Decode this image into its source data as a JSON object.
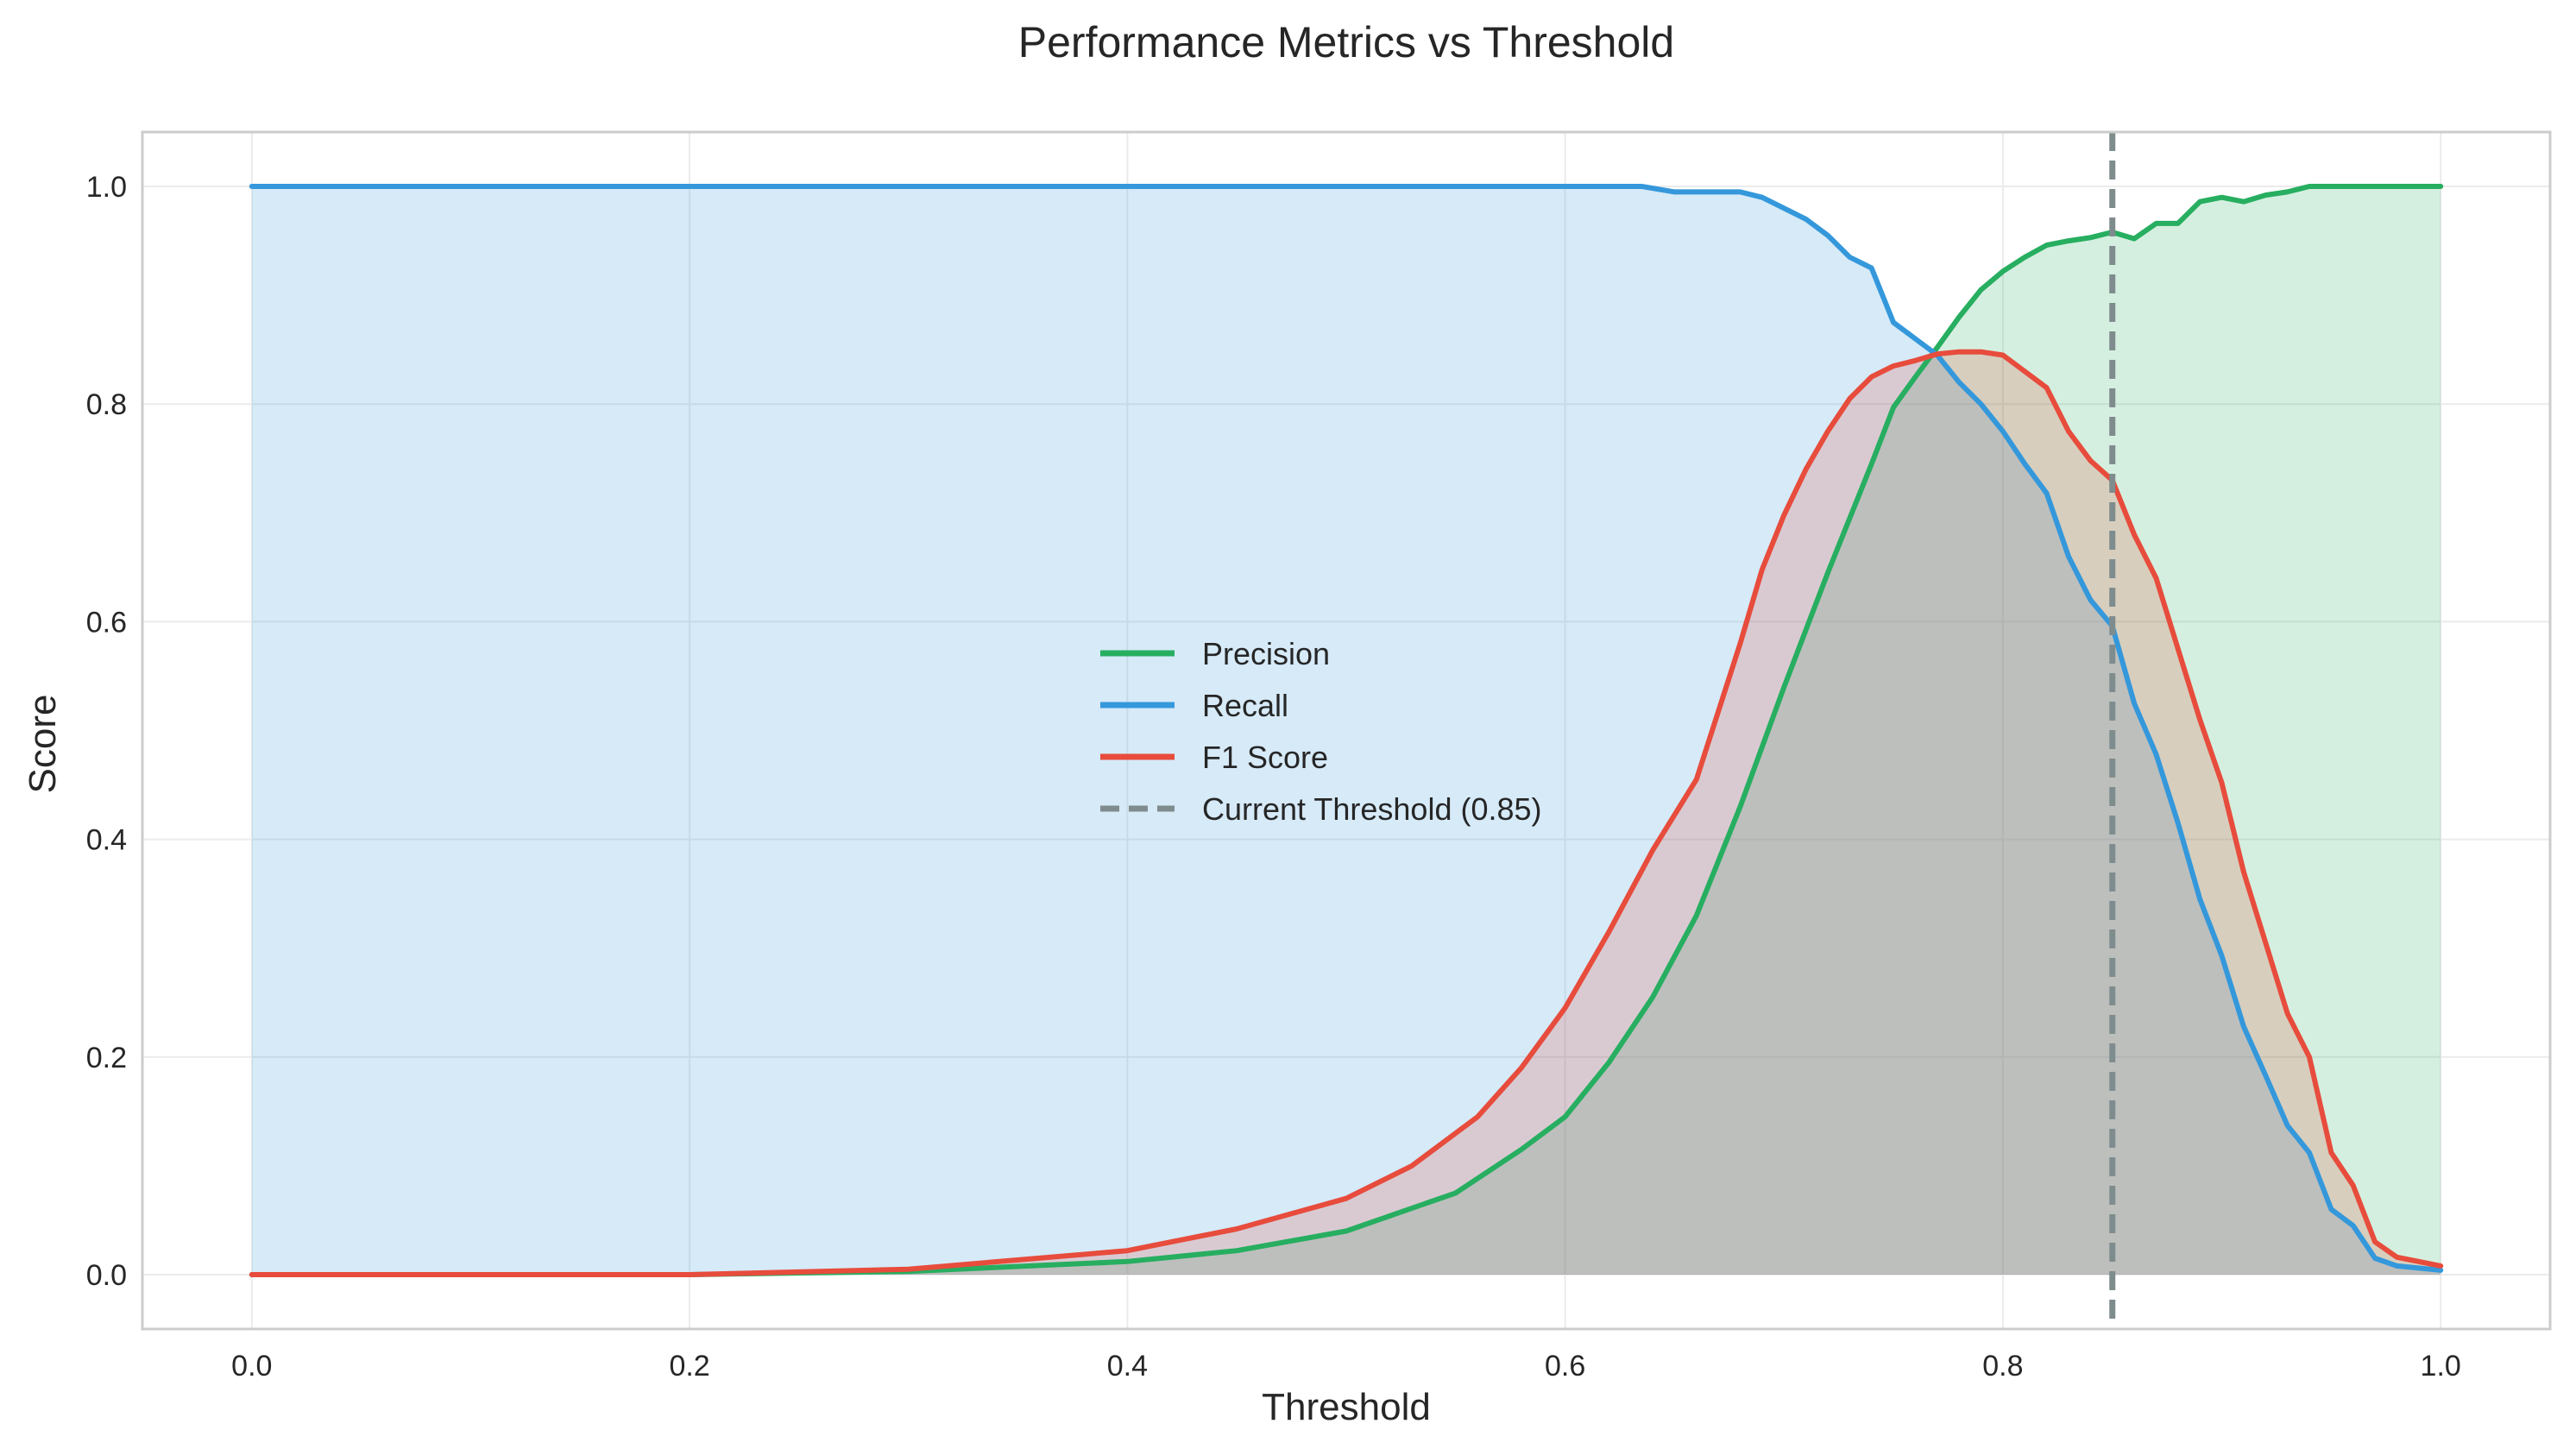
{
  "chart_data": {
    "type": "line",
    "title": "Performance Metrics vs Threshold",
    "xlabel": "Threshold",
    "ylabel": "Score",
    "xlim": [
      -0.05,
      1.05
    ],
    "ylim": [
      -0.05,
      1.05
    ],
    "xticks": [
      0.0,
      0.2,
      0.4,
      0.6,
      0.8,
      1.0
    ],
    "yticks": [
      0.0,
      0.2,
      0.4,
      0.6,
      0.8,
      1.0
    ],
    "xtick_labels": [
      "0.0",
      "0.2",
      "0.4",
      "0.6",
      "0.8",
      "1.0"
    ],
    "ytick_labels": [
      "0.0",
      "0.2",
      "0.4",
      "0.6",
      "0.8",
      "1.0"
    ],
    "grid": true,
    "legend_position": "center",
    "threshold": {
      "name": "Current Threshold (0.85)",
      "value": 0.85,
      "color": "#7f8c8d"
    },
    "series": [
      {
        "name": "Precision",
        "color": "#27ae60",
        "filled": true,
        "x": [
          0.0,
          0.2,
          0.3,
          0.4,
          0.45,
          0.5,
          0.55,
          0.58,
          0.6,
          0.62,
          0.64,
          0.66,
          0.68,
          0.7,
          0.72,
          0.74,
          0.75,
          0.76,
          0.77,
          0.78,
          0.79,
          0.8,
          0.81,
          0.82,
          0.83,
          0.84,
          0.85,
          0.86,
          0.87,
          0.88,
          0.89,
          0.9,
          0.91,
          0.92,
          0.93,
          0.94,
          0.96,
          0.98,
          1.0
        ],
        "y": [
          0.0,
          0.0,
          0.003,
          0.012,
          0.022,
          0.04,
          0.075,
          0.115,
          0.145,
          0.195,
          0.255,
          0.33,
          0.43,
          0.54,
          0.645,
          0.745,
          0.797,
          0.825,
          0.852,
          0.88,
          0.905,
          0.922,
          0.935,
          0.946,
          0.95,
          0.953,
          0.958,
          0.952,
          0.966,
          0.966,
          0.986,
          0.99,
          0.986,
          0.992,
          0.995,
          1.0,
          1.0,
          1.0,
          1.0
        ]
      },
      {
        "name": "Recall",
        "color": "#3498db",
        "filled": true,
        "x": [
          0.0,
          0.2,
          0.4,
          0.6,
          0.635,
          0.65,
          0.66,
          0.68,
          0.69,
          0.7,
          0.71,
          0.72,
          0.73,
          0.74,
          0.75,
          0.76,
          0.77,
          0.78,
          0.79,
          0.8,
          0.81,
          0.82,
          0.83,
          0.84,
          0.85,
          0.86,
          0.87,
          0.88,
          0.89,
          0.9,
          0.91,
          0.92,
          0.93,
          0.94,
          0.95,
          0.96,
          0.97,
          0.98,
          1.0
        ],
        "y": [
          1.0,
          1.0,
          1.0,
          1.0,
          1.0,
          0.995,
          0.995,
          0.995,
          0.99,
          0.98,
          0.97,
          0.955,
          0.935,
          0.925,
          0.875,
          0.86,
          0.845,
          0.82,
          0.8,
          0.775,
          0.745,
          0.718,
          0.66,
          0.62,
          0.596,
          0.525,
          0.478,
          0.415,
          0.345,
          0.293,
          0.228,
          0.183,
          0.137,
          0.112,
          0.06,
          0.045,
          0.015,
          0.008,
          0.004
        ]
      },
      {
        "name": "F1 Score",
        "color": "#e74c3c",
        "filled": true,
        "x": [
          0.0,
          0.2,
          0.3,
          0.4,
          0.45,
          0.5,
          0.53,
          0.56,
          0.58,
          0.6,
          0.62,
          0.64,
          0.66,
          0.68,
          0.69,
          0.7,
          0.71,
          0.72,
          0.73,
          0.74,
          0.75,
          0.76,
          0.77,
          0.78,
          0.79,
          0.8,
          0.81,
          0.82,
          0.83,
          0.84,
          0.85,
          0.86,
          0.87,
          0.88,
          0.89,
          0.9,
          0.91,
          0.92,
          0.93,
          0.94,
          0.95,
          0.96,
          0.97,
          0.98,
          1.0
        ],
        "y": [
          0.0,
          0.0,
          0.005,
          0.022,
          0.042,
          0.07,
          0.1,
          0.145,
          0.19,
          0.245,
          0.315,
          0.39,
          0.455,
          0.58,
          0.648,
          0.698,
          0.74,
          0.775,
          0.805,
          0.825,
          0.835,
          0.84,
          0.846,
          0.848,
          0.848,
          0.845,
          0.83,
          0.815,
          0.775,
          0.748,
          0.73,
          0.68,
          0.64,
          0.575,
          0.51,
          0.452,
          0.37,
          0.305,
          0.24,
          0.2,
          0.112,
          0.082,
          0.03,
          0.016,
          0.008
        ]
      }
    ]
  }
}
